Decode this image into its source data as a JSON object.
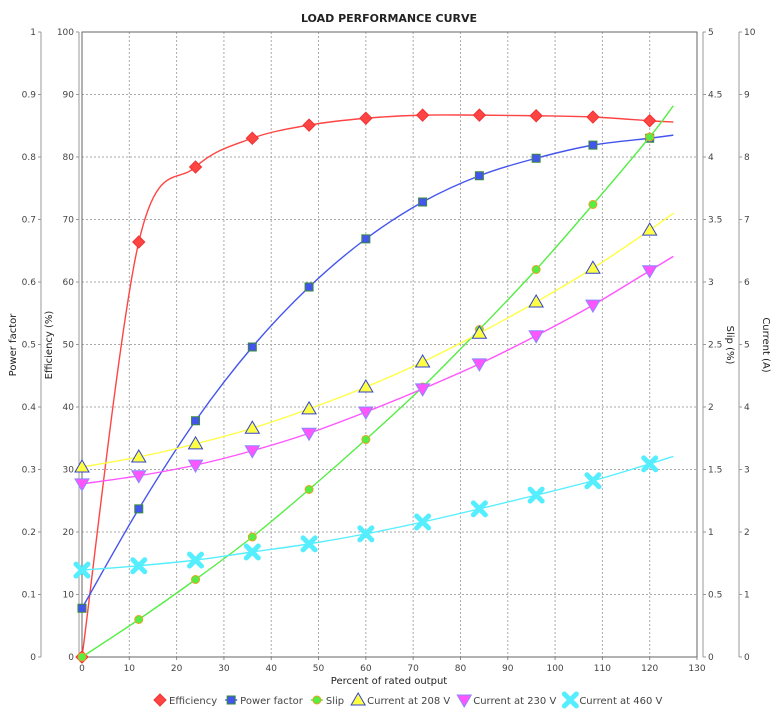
{
  "chart_data": {
    "type": "line",
    "title": "LOAD PERFORMANCE CURVE",
    "xlabel": "Percent of rated output",
    "xlim": [
      0,
      130
    ],
    "xticks": [
      0,
      10,
      20,
      30,
      40,
      50,
      60,
      70,
      80,
      90,
      100,
      110,
      120,
      130
    ],
    "grid": true,
    "legend_position": "bottom",
    "axes": {
      "power_factor": {
        "label": "Power factor",
        "side": "left-outer",
        "range": [
          0,
          1
        ],
        "ticks": [
          "0",
          "0.1",
          "0.2",
          "0.3",
          "0.4",
          "0.5",
          "0.6",
          "0.7",
          "0.8",
          "0.9",
          "1"
        ]
      },
      "efficiency": {
        "label": "Efficiency (%)",
        "side": "left-inner",
        "range": [
          0,
          100
        ],
        "ticks": [
          "0",
          "10",
          "20",
          "30",
          "40",
          "50",
          "60",
          "70",
          "80",
          "90",
          "100"
        ]
      },
      "slip": {
        "label": "Slip (%)",
        "side": "right-inner",
        "range": [
          0,
          5
        ],
        "ticks": [
          "0",
          "0.5",
          "1",
          "1.5",
          "2",
          "2.5",
          "3",
          "3.5",
          "4",
          "4.5",
          "5"
        ]
      },
      "current": {
        "label": "Current (A)",
        "side": "right-outer",
        "range": [
          0,
          10
        ],
        "ticks": [
          "0",
          "1",
          "2",
          "3",
          "4",
          "5",
          "6",
          "7",
          "8",
          "9",
          "10"
        ]
      }
    },
    "x": [
      0,
      12,
      24,
      36,
      48,
      60,
      72,
      84,
      96,
      108,
      120
    ],
    "series": [
      {
        "name": "Efficiency",
        "axis": "efficiency",
        "color": "#ff4444",
        "marker": "diamond",
        "values": [
          0,
          66.4,
          78.4,
          83.0,
          85.1,
          86.2,
          86.7,
          86.7,
          86.6,
          86.4,
          85.8
        ],
        "curve_end": 85.6
      },
      {
        "name": "Power factor",
        "axis": "power_factor",
        "color": "#4455ee",
        "marker": "square",
        "values": [
          0.078,
          0.237,
          0.378,
          0.496,
          0.592,
          0.669,
          0.728,
          0.77,
          0.798,
          0.819,
          0.83
        ],
        "curve_end": 0.835
      },
      {
        "name": "Slip",
        "axis": "slip",
        "color": "#55ee44",
        "marker": "circle",
        "values": [
          0,
          0.3,
          0.62,
          0.96,
          1.34,
          1.74,
          2.16,
          2.62,
          3.1,
          3.62,
          4.16
        ],
        "curve_end": 4.41
      },
      {
        "name": "Current at 208 V",
        "axis": "current",
        "color": "#ffff44",
        "marker": "triangle-up",
        "values": [
          3.04,
          3.2,
          3.41,
          3.66,
          3.97,
          4.32,
          4.72,
          5.18,
          5.68,
          6.22,
          6.83
        ],
        "curve_end": 7.1
      },
      {
        "name": "Current at 230 V",
        "axis": "current",
        "color": "#ff55ff",
        "marker": "triangle-down",
        "values": [
          2.77,
          2.9,
          3.07,
          3.3,
          3.58,
          3.92,
          4.29,
          4.69,
          5.14,
          5.63,
          6.18
        ],
        "curve_end": 6.41
      },
      {
        "name": "Current at 460 V",
        "axis": "current",
        "color": "#55eeff",
        "marker": "x",
        "values": [
          1.39,
          1.46,
          1.55,
          1.68,
          1.81,
          1.97,
          2.16,
          2.37,
          2.59,
          2.82,
          3.09
        ],
        "curve_end": 3.21
      }
    ],
    "curve_x_end": 125
  }
}
